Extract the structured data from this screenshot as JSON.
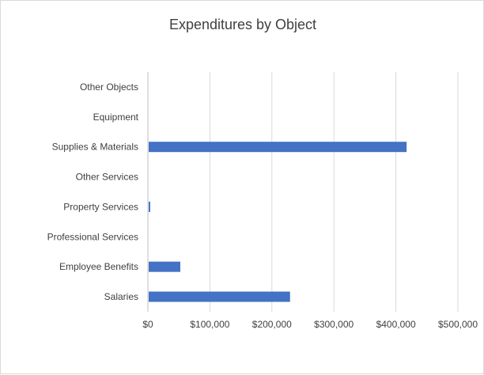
{
  "chart_data": {
    "type": "bar",
    "orientation": "horizontal",
    "title": "Expenditures by Object",
    "xlabel": "",
    "ylabel": "",
    "categories": [
      "Salaries",
      "Employee Benefits",
      "Professional Services",
      "Property Services",
      "Other Services",
      "Supplies & Materials",
      "Equipment",
      "Other Objects"
    ],
    "values": [
      228000,
      51000,
      0,
      2500,
      0,
      416000,
      0,
      0
    ],
    "xlim": [
      0,
      500000
    ],
    "x_ticks": [
      0,
      100000,
      200000,
      300000,
      400000,
      500000
    ],
    "x_tick_labels": [
      "$0",
      "$100,000",
      "$200,000",
      "$300,000",
      "$400,000",
      "$500,000"
    ],
    "grid": true,
    "legend": "none",
    "bar_color": "#4472c4"
  }
}
